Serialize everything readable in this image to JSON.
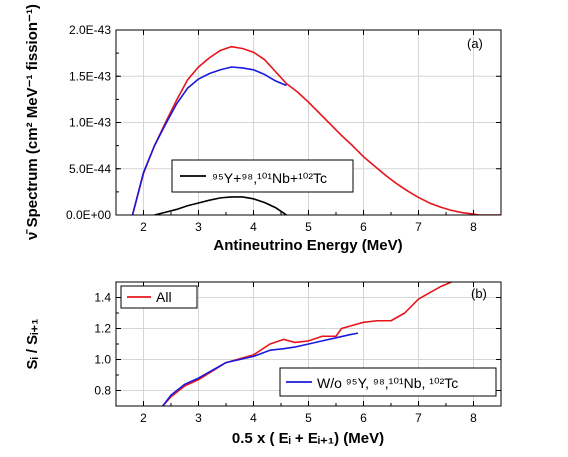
{
  "chart_data": [
    {
      "panel": "(a)",
      "type": "line",
      "xlabel": "Antineutrino Energy (MeV)",
      "ylabel": "ν̄ Spectrum (cm² MeV⁻¹ fission⁻¹)",
      "xlim": [
        1.5,
        8.5
      ],
      "ylim": [
        0,
        2e-43
      ],
      "xticks": [
        "2",
        "3",
        "4",
        "5",
        "6",
        "7",
        "8"
      ],
      "yticks": [
        "0.0E+00",
        "5.0E-44",
        "1.0E-43",
        "1.5E-43",
        "2.0E-43"
      ],
      "grid": true,
      "legend": {
        "placement": "center",
        "entries": [
          {
            "label": "⁹⁵Y+⁹⁸,¹⁰¹Nb+¹⁰²Tc",
            "color": "#000000"
          }
        ]
      },
      "series": [
        {
          "color": "#e8141b",
          "x": [
            1.8,
            2.0,
            2.2,
            2.4,
            2.6,
            2.8,
            3.0,
            3.2,
            3.4,
            3.6,
            3.8,
            4.0,
            4.2,
            4.4,
            4.6,
            4.8,
            5.0,
            5.2,
            5.4,
            5.6,
            5.8,
            6.0,
            6.2,
            6.4,
            6.6,
            6.8,
            7.0,
            7.2,
            7.4,
            7.6,
            7.8,
            8.0,
            8.1,
            8.5
          ],
          "y": [
            0,
            4.5e-44,
            7.5e-44,
            1e-43,
            1.24e-43,
            1.46e-43,
            1.6e-43,
            1.7e-43,
            1.78e-43,
            1.82e-43,
            1.8e-43,
            1.76e-43,
            1.68e-43,
            1.55e-43,
            1.42e-43,
            1.33e-43,
            1.22e-43,
            1.1e-43,
            9.8e-44,
            8.6e-44,
            7.5e-44,
            6.3e-44,
            5.3e-44,
            4.3e-44,
            3.4e-44,
            2.6e-44,
            1.9e-44,
            1.3e-44,
            8.5e-45,
            5e-45,
            2.5e-45,
            1e-45,
            0,
            0
          ]
        },
        {
          "color": "#1a1adf",
          "x": [
            1.8,
            2.0,
            2.2,
            2.4,
            2.6,
            2.8,
            3.0,
            3.2,
            3.4,
            3.6,
            3.8,
            4.0,
            4.2,
            4.4,
            4.6
          ],
          "y": [
            0,
            4.6e-44,
            7.5e-44,
            9.8e-44,
            1.2e-43,
            1.37e-43,
            1.47e-43,
            1.53e-43,
            1.57e-43,
            1.6e-43,
            1.59e-43,
            1.57e-43,
            1.52e-43,
            1.45e-43,
            1.4e-43
          ]
        },
        {
          "color": "#000000",
          "x": [
            2.2,
            2.4,
            2.6,
            2.8,
            3.0,
            3.2,
            3.4,
            3.6,
            3.8,
            4.0,
            4.2,
            4.4,
            4.5,
            4.6
          ],
          "y": [
            0,
            3e-45,
            6e-45,
            1e-44,
            1.3e-44,
            1.6e-44,
            1.85e-44,
            1.95e-44,
            1.95e-44,
            1.75e-44,
            1.35e-44,
            8e-45,
            4e-45,
            0
          ]
        }
      ]
    },
    {
      "panel": "(b)",
      "type": "line",
      "xlabel": "0.5 x ( Eᵢ + Eᵢ₊₁) (MeV)",
      "ylabel": "Sᵢ / Sᵢ₊₁",
      "xlim": [
        1.5,
        8.5
      ],
      "ylim": [
        0.7,
        1.5
      ],
      "xticks": [
        "2",
        "3",
        "4",
        "5",
        "6",
        "7",
        "8"
      ],
      "yticks": [
        "0.8",
        "1.0",
        "1.2",
        "1.4"
      ],
      "grid": true,
      "legend": {
        "entries": [
          {
            "label": "All",
            "color": "#e8141b",
            "placement": "top-left"
          },
          {
            "label": "W/o ⁹⁵Y, ⁹⁸,¹⁰¹Nb, ¹⁰²Tc",
            "color": "#1a1adf",
            "placement": "bottom-right"
          }
        ]
      },
      "series": [
        {
          "color": "#e8141b",
          "x": [
            2.35,
            2.5,
            2.75,
            3.0,
            3.5,
            4.0,
            4.3,
            4.55,
            4.75,
            5.0,
            5.25,
            5.5,
            5.6,
            5.8,
            6.0,
            6.25,
            6.5,
            6.75,
            7.0,
            7.2,
            7.4,
            7.6
          ],
          "y": [
            0.7,
            0.76,
            0.83,
            0.87,
            0.98,
            1.03,
            1.1,
            1.13,
            1.11,
            1.12,
            1.15,
            1.15,
            1.2,
            1.22,
            1.24,
            1.25,
            1.25,
            1.3,
            1.39,
            1.43,
            1.47,
            1.5
          ]
        },
        {
          "color": "#1a1adf",
          "x": [
            2.35,
            2.5,
            2.75,
            3.0,
            3.5,
            4.0,
            4.3,
            4.55,
            4.75,
            5.0,
            5.25,
            5.5,
            5.75,
            5.9
          ],
          "y": [
            0.7,
            0.77,
            0.84,
            0.88,
            0.98,
            1.02,
            1.06,
            1.07,
            1.08,
            1.1,
            1.12,
            1.14,
            1.16,
            1.17
          ]
        }
      ]
    }
  ]
}
